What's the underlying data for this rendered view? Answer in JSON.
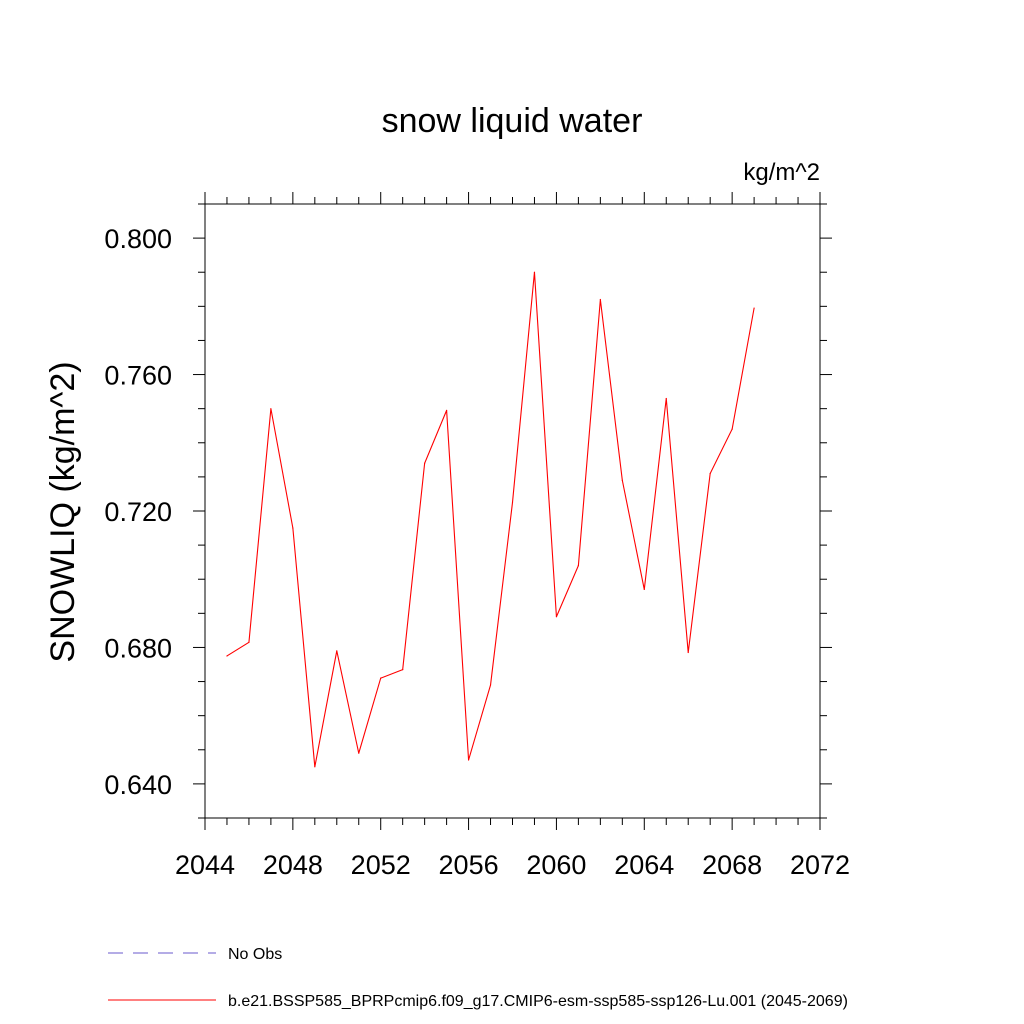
{
  "chart_data": {
    "type": "line",
    "title": "snow liquid water",
    "units_label": "kg/m^2",
    "ylabel": "SNOWLIQ  (kg/m^2)",
    "xlabel": "",
    "xlim": [
      2044,
      2072
    ],
    "ylim": [
      0.63,
      0.81
    ],
    "x_ticks": [
      2044,
      2048,
      2052,
      2056,
      2060,
      2064,
      2068,
      2072
    ],
    "x_tick_labels": [
      "2044",
      "2048",
      "2052",
      "2056",
      "2060",
      "2064",
      "2068",
      "2072"
    ],
    "y_ticks": [
      0.64,
      0.68,
      0.72,
      0.76,
      0.8
    ],
    "y_tick_labels": [
      "0.640",
      "0.680",
      "0.720",
      "0.760",
      "0.800"
    ],
    "grid": false,
    "legend_position": "bottom-left",
    "series": [
      {
        "name": "b.e21.BSSP585_BPRPcmip6.f09_g17.CMIP6-esm-ssp585-ssp126-Lu.001 (2045-2069)",
        "color": "#ff0000",
        "dash": "solid",
        "x": [
          2045,
          2046,
          2047,
          2048,
          2049,
          2050,
          2051,
          2052,
          2053,
          2054,
          2055,
          2056,
          2057,
          2058,
          2059,
          2060,
          2061,
          2062,
          2063,
          2064,
          2065,
          2066,
          2067,
          2068,
          2069
        ],
        "values": [
          0.6775,
          0.6815,
          0.75,
          0.715,
          0.645,
          0.679,
          0.649,
          0.671,
          0.6735,
          0.734,
          0.7495,
          0.647,
          0.669,
          0.7225,
          0.79,
          0.689,
          0.704,
          0.782,
          0.729,
          0.697,
          0.753,
          0.6785,
          0.731,
          0.744,
          0.7795
        ]
      }
    ],
    "legend": [
      {
        "label": "No Obs",
        "color": "#6a5acd",
        "dash": "dashed"
      },
      {
        "label": "b.e21.BSSP585_BPRPcmip6.f09_g17.CMIP6-esm-ssp585-ssp126-Lu.001 (2045-2069)",
        "color": "#ff0000",
        "dash": "solid"
      }
    ]
  }
}
